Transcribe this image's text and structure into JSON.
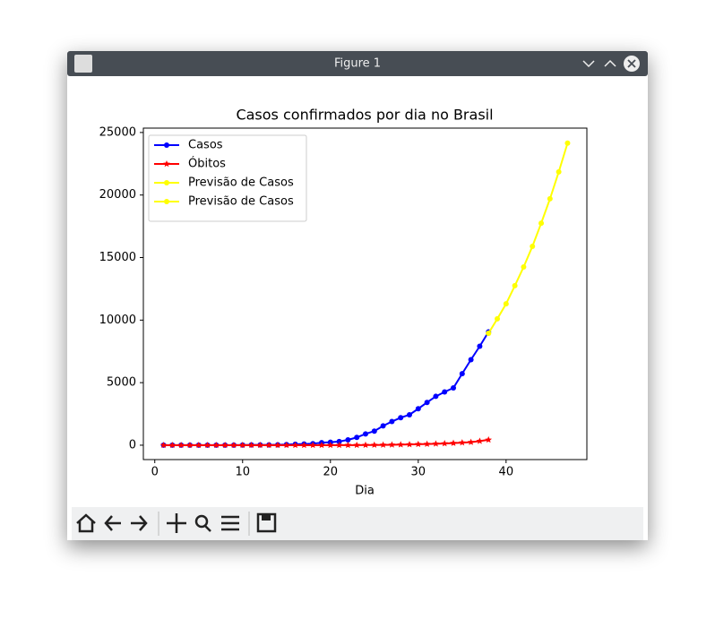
{
  "window": {
    "title": "Figure 1"
  },
  "chart_data": {
    "type": "line",
    "title": "Casos confirmados por dia no Brasil",
    "x_label": "Dia",
    "xlim": [
      -1.3,
      49.2
    ],
    "xticks": [
      0,
      10,
      20,
      30,
      40
    ],
    "ylim": [
      -1150,
      25350
    ],
    "yticks": [
      0,
      5000,
      10000,
      15000,
      20000,
      25000
    ],
    "legend": "upper left",
    "series": [
      {
        "name": "Casos",
        "color": "#0000ff",
        "marker": "circle",
        "x": [
          1,
          2,
          3,
          4,
          5,
          6,
          7,
          8,
          9,
          10,
          11,
          12,
          13,
          14,
          15,
          16,
          17,
          18,
          19,
          20,
          21,
          22,
          23,
          24,
          25,
          26,
          27,
          28,
          29,
          30,
          31,
          32,
          33,
          34,
          35,
          36,
          37,
          38
        ],
        "values": [
          1,
          1,
          1,
          2,
          2,
          2,
          2,
          3,
          8,
          13,
          19,
          25,
          25,
          34,
          52,
          77,
          98,
          121,
          200,
          234,
          291,
          428,
          621,
          904,
          1128,
          1546,
          1891,
          2201,
          2433,
          2915,
          3417,
          3904,
          4256,
          4579,
          5717,
          6836,
          7910,
          9056
        ]
      },
      {
        "name": "Óbitos",
        "color": "#ff0000",
        "marker": "star",
        "x": [
          1,
          2,
          3,
          4,
          5,
          6,
          7,
          8,
          9,
          10,
          11,
          12,
          13,
          14,
          15,
          16,
          17,
          18,
          19,
          20,
          21,
          22,
          23,
          24,
          25,
          26,
          27,
          28,
          29,
          30,
          31,
          32,
          33,
          34,
          35,
          36,
          37,
          38
        ],
        "values": [
          0,
          0,
          0,
          0,
          0,
          0,
          0,
          0,
          0,
          0,
          0,
          0,
          0,
          0,
          0,
          0,
          0,
          0,
          0,
          0,
          1,
          4,
          6,
          11,
          18,
          25,
          34,
          46,
          59,
          77,
          92,
          114,
          136,
          165,
          201,
          242,
          327,
          431
        ]
      },
      {
        "name": "Previsão de Casos",
        "color": "#ffff00",
        "marker": "circle",
        "x": [
          38,
          39,
          40,
          41,
          42,
          43,
          44,
          45,
          46,
          47
        ],
        "values": [
          8950,
          10100,
          11300,
          12750,
          14250,
          15900,
          17750,
          19700,
          21850,
          24150
        ]
      },
      {
        "name": "Previsão de Casos",
        "color": "#ffff00",
        "marker": "circle",
        "x": [
          38
        ],
        "values": [
          8950
        ]
      }
    ]
  }
}
